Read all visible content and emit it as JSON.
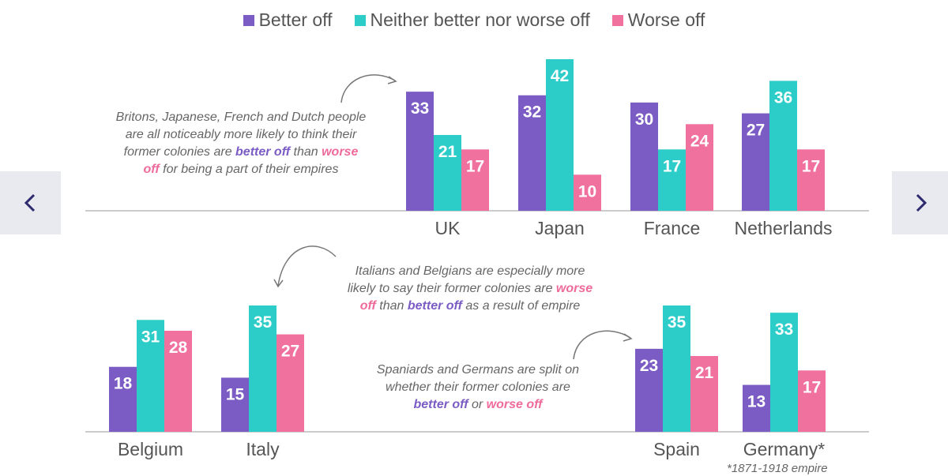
{
  "colors": {
    "better": "#7b5cc4",
    "neither": "#2ccdc9",
    "worse": "#f0719e",
    "axis": "#cccccc",
    "label": "#555555"
  },
  "legend": [
    {
      "key": "better",
      "label": "Better off"
    },
    {
      "key": "neither",
      "label": "Neither better nor worse off"
    },
    {
      "key": "worse",
      "label": "Worse off"
    }
  ],
  "chart_data": [
    {
      "type": "bar",
      "title": "",
      "categories": [
        "UK",
        "Japan",
        "France",
        "Netherlands"
      ],
      "series": [
        {
          "name": "Better off",
          "values": [
            33,
            32,
            30,
            27
          ]
        },
        {
          "name": "Neither better nor worse off",
          "values": [
            21,
            42,
            17,
            36
          ]
        },
        {
          "name": "Worse off",
          "values": [
            17,
            10,
            24,
            17
          ]
        }
      ],
      "ylim": [
        0,
        42
      ]
    },
    {
      "type": "bar",
      "title": "",
      "categories": [
        "Belgium",
        "Italy",
        "Spain",
        "Germany*"
      ],
      "series": [
        {
          "name": "Better off",
          "values": [
            18,
            15,
            23,
            13
          ]
        },
        {
          "name": "Neither better nor worse off",
          "values": [
            31,
            35,
            35,
            33
          ]
        },
        {
          "name": "Worse off",
          "values": [
            28,
            27,
            21,
            17
          ]
        }
      ],
      "ylim": [
        0,
        42
      ]
    }
  ],
  "notes": {
    "top": {
      "l1": "Britons, Japanese, French and Dutch people",
      "l2": "are all noticeably more likely to think their",
      "l3a": "former colonies are ",
      "l3b": "better off",
      "l3c": " than ",
      "l3d": "worse",
      "l4a": "off",
      "l4b": " for being a part of their empires"
    },
    "mid": {
      "l1": "Italians and Belgians are especially more",
      "l2a": "likely to say their former colonies are ",
      "l2b": "worse",
      "l3a": "off",
      "l3b": " than ",
      "l3c": "better off",
      "l3d": " as a result of empire"
    },
    "low": {
      "l1": "Spaniards and Germans are split on",
      "l2": "whether their former colonies are",
      "l3a": "better off",
      "l3b": " or ",
      "l3c": "worse off"
    }
  },
  "footnote": "*1871-1918 empire",
  "nav": {
    "prev": "previous",
    "next": "next"
  }
}
